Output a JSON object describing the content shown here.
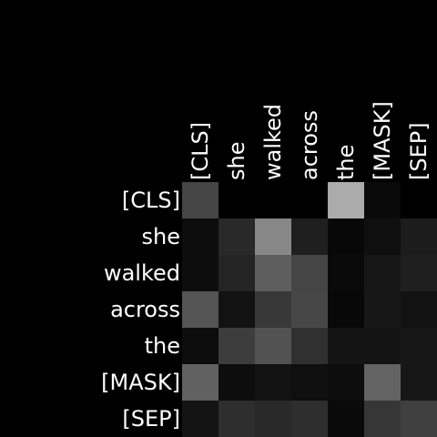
{
  "chart_data": {
    "type": "heatmap",
    "title": "",
    "xlabel": "",
    "ylabel": "",
    "x_labels": [
      "[CLS]",
      "she",
      "walked",
      "across",
      "the",
      "[MASK]",
      "[SEP]"
    ],
    "y_labels": [
      "[CLS]",
      "she",
      "walked",
      "across",
      "the",
      "[MASK]",
      "[SEP]"
    ],
    "value_range": [
      0,
      1
    ],
    "colormap": "grayscale (black = 0, white = 1)",
    "grid": false,
    "values": [
      [
        0.27,
        0.0,
        0.0,
        0.0,
        0.67,
        0.04,
        0.0
      ],
      [
        0.05,
        0.16,
        0.53,
        0.12,
        0.03,
        0.06,
        0.11
      ],
      [
        0.05,
        0.14,
        0.37,
        0.27,
        0.04,
        0.09,
        0.12
      ],
      [
        0.33,
        0.07,
        0.22,
        0.28,
        0.03,
        0.09,
        0.07
      ],
      [
        0.05,
        0.24,
        0.32,
        0.19,
        0.08,
        0.08,
        0.09
      ],
      [
        0.38,
        0.05,
        0.07,
        0.06,
        0.05,
        0.39,
        0.09
      ],
      [
        0.08,
        0.18,
        0.16,
        0.18,
        0.04,
        0.21,
        0.25
      ]
    ]
  }
}
